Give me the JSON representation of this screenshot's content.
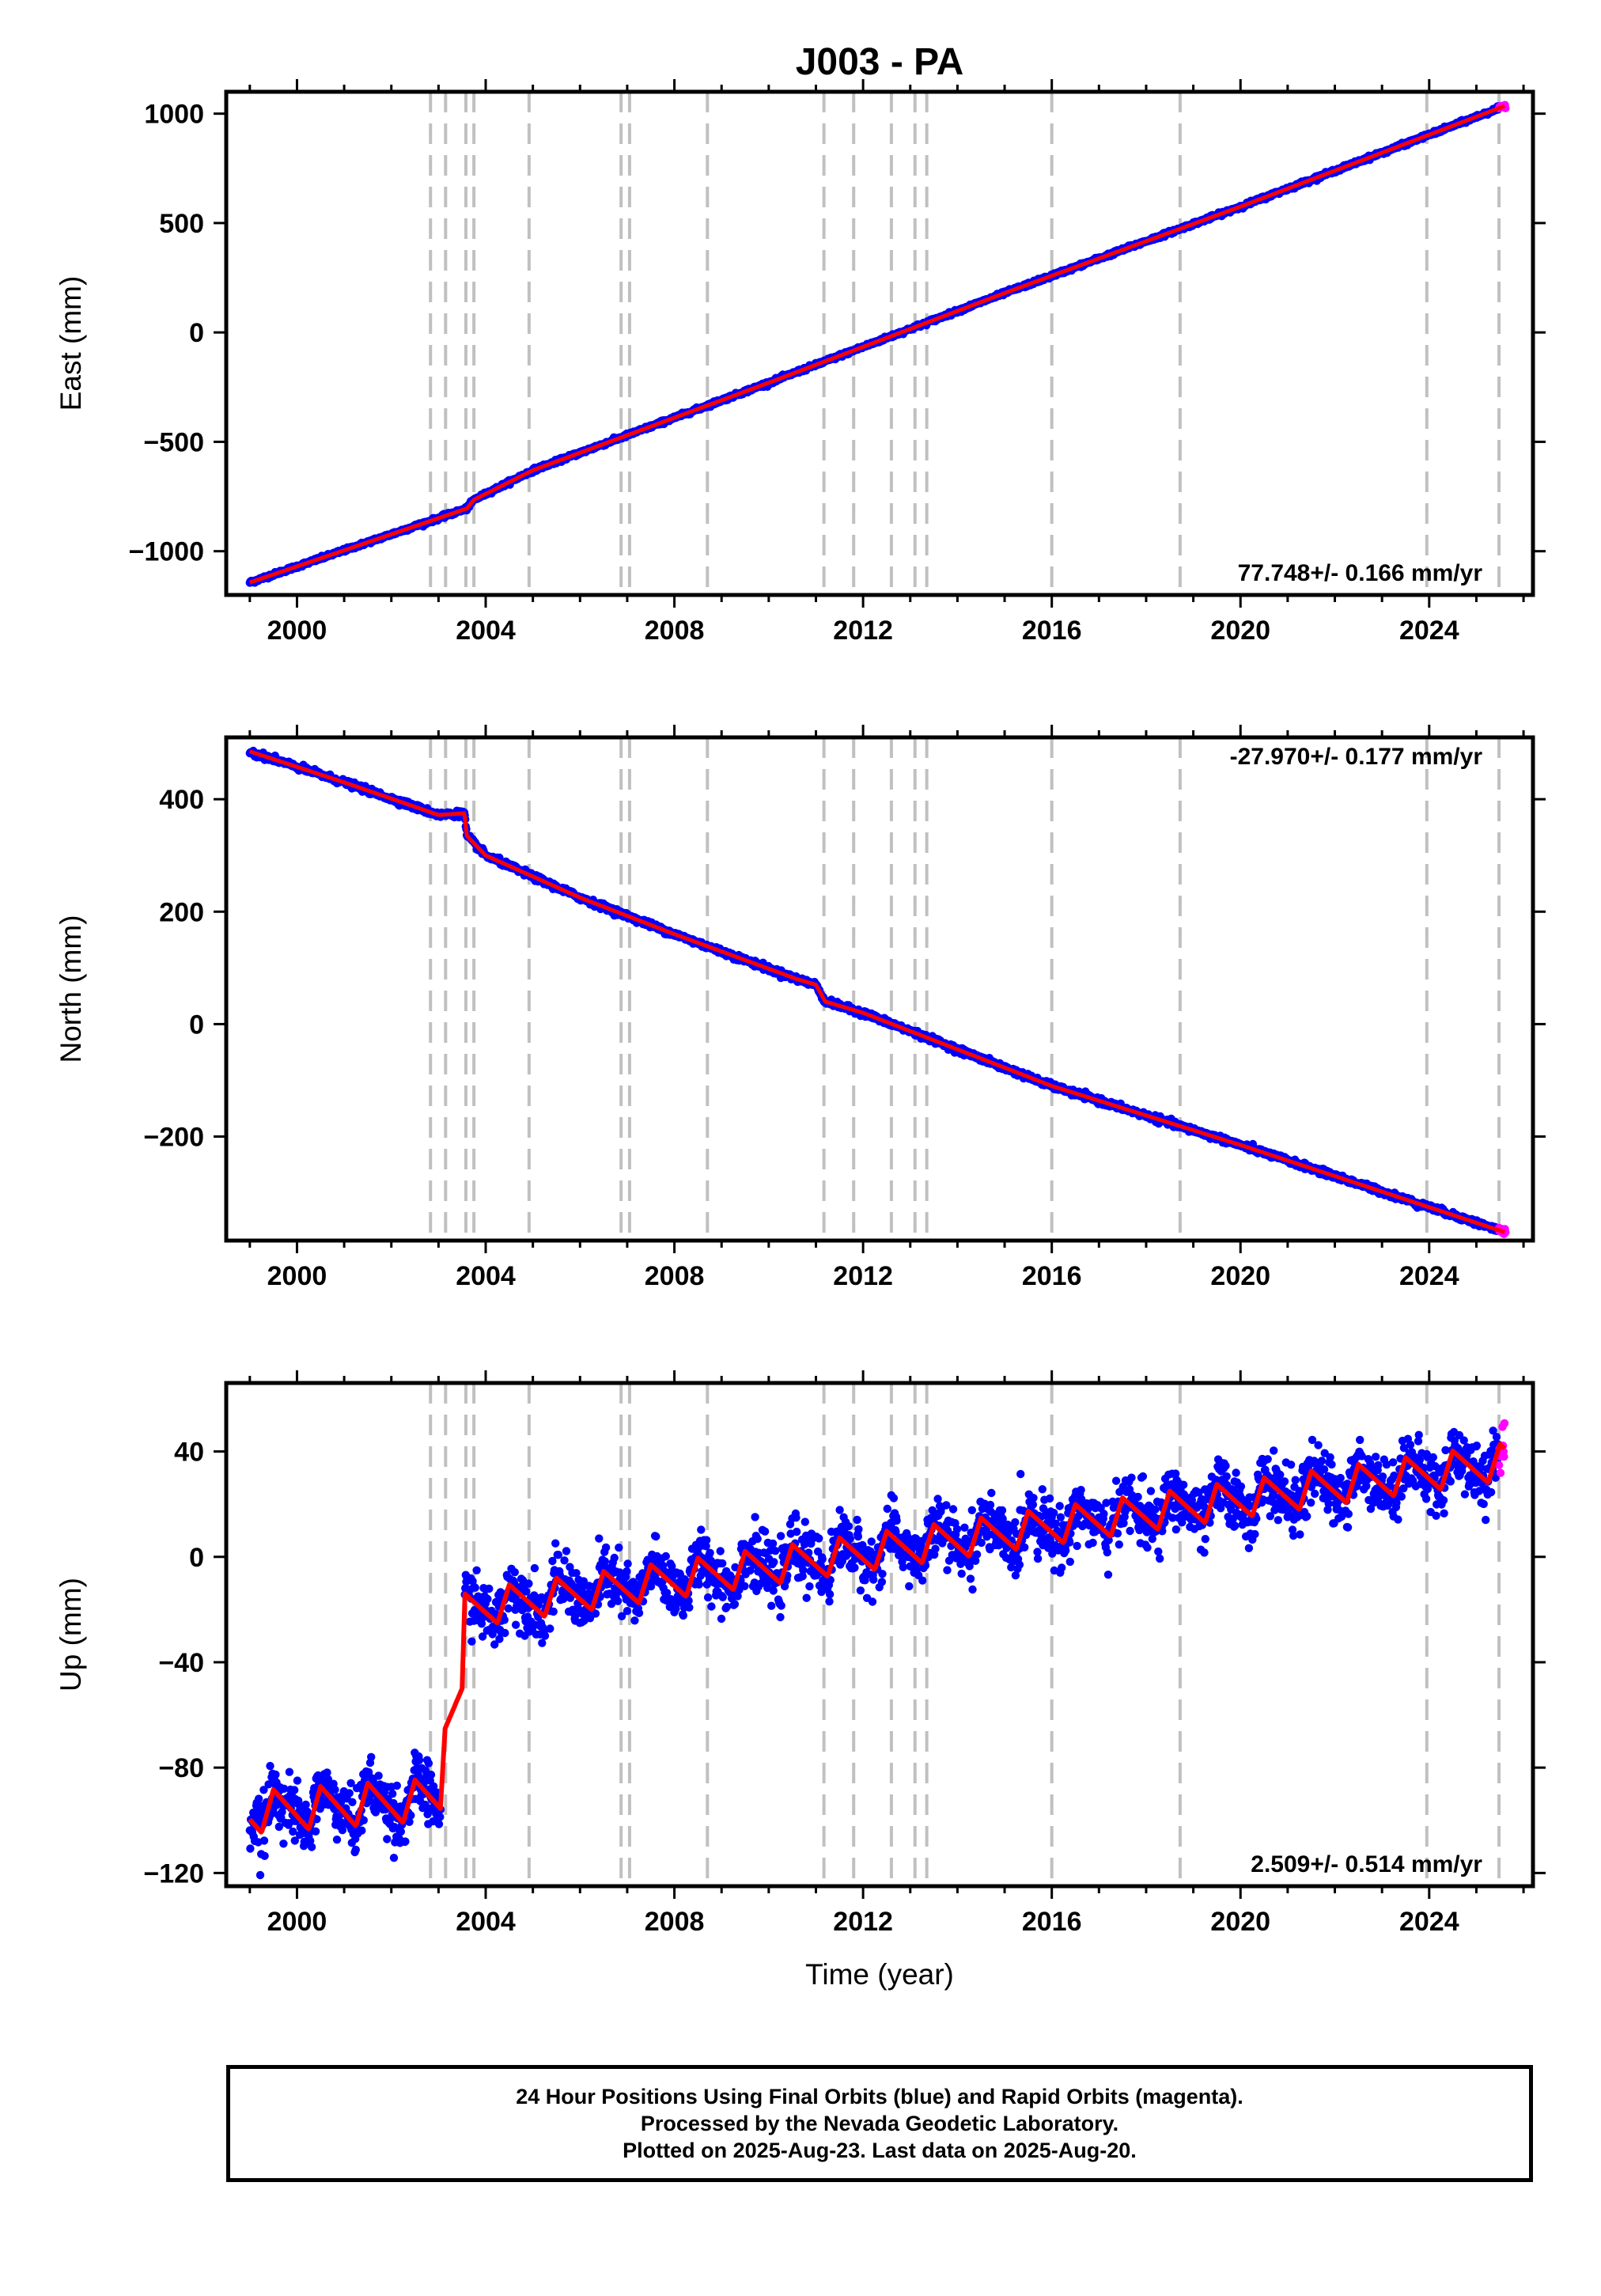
{
  "title": "J003 - PA",
  "chart_data": [
    {
      "type": "scatter",
      "panel": "east",
      "ylabel": "East (mm)",
      "xlabel": "",
      "xlim": [
        1998.5,
        2026.2
      ],
      "ylim": [
        -1200,
        1100
      ],
      "xticks": [
        2000,
        2004,
        2008,
        2012,
        2016,
        2020,
        2024
      ],
      "yticks": [
        -1000,
        -500,
        0,
        500,
        1000
      ],
      "yticklabels": [
        "−1000",
        "−500",
        "0",
        "500",
        "1000"
      ],
      "rate_label": "77.748+/- 0.166 mm/yr",
      "rate_position": "bottom-right",
      "trend_points": [
        [
          1999.0,
          -1143
        ],
        [
          2003.6,
          -805
        ],
        [
          2003.75,
          -765
        ],
        [
          2005,
          -630
        ],
        [
          2010,
          -230
        ],
        [
          2015,
          180
        ],
        [
          2020,
          575
        ],
        [
          2025.6,
          1035
        ]
      ]
    },
    {
      "type": "scatter",
      "panel": "north",
      "ylabel": "North (mm)",
      "xlabel": "",
      "xlim": [
        1998.5,
        2026.2
      ],
      "ylim": [
        -385,
        510
      ],
      "xticks": [
        2000,
        2004,
        2008,
        2012,
        2016,
        2020,
        2024
      ],
      "yticks": [
        -200,
        0,
        200,
        400
      ],
      "yticklabels": [
        "−200",
        "0",
        "200",
        "400"
      ],
      "rate_label": "-27.970+/- 0.177 mm/yr",
      "rate_position": "top-right",
      "trend_points": [
        [
          1999.0,
          485
        ],
        [
          2001,
          430
        ],
        [
          2003.0,
          372
        ],
        [
          2003.55,
          375
        ],
        [
          2003.6,
          335
        ],
        [
          2004.0,
          300
        ],
        [
          2006,
          225
        ],
        [
          2008,
          160
        ],
        [
          2010.6,
          80
        ],
        [
          2011.0,
          70
        ],
        [
          2011.2,
          40
        ],
        [
          2012,
          20
        ],
        [
          2016,
          -110
        ],
        [
          2020,
          -215
        ],
        [
          2025.6,
          -370
        ]
      ]
    },
    {
      "type": "scatter",
      "panel": "up",
      "ylabel": "Up (mm)",
      "xlabel": "Time (year)",
      "xlim": [
        1998.5,
        2026.2
      ],
      "ylim": [
        -125,
        66
      ],
      "xticks": [
        2000,
        2004,
        2008,
        2012,
        2016,
        2020,
        2024
      ],
      "yticks": [
        -120,
        -80,
        -40,
        0,
        40
      ],
      "yticklabels": [
        "−120",
        "−80",
        "−40",
        "0",
        "40"
      ],
      "rate_label": "2.509+/- 0.514 mm/yr",
      "rate_position": "bottom-right",
      "segments": [
        {
          "start": 1999.0,
          "end": 2003.05,
          "base_start": -97,
          "base_end": -92,
          "amp": 8
        },
        {
          "start": 2003.12,
          "end": 2003.5,
          "base_start": -66,
          "base_end": -50,
          "amp": 0
        },
        {
          "start": 2003.55,
          "end": 2025.6,
          "base_start": -20,
          "base_end": 36,
          "amp": 7
        }
      ]
    }
  ],
  "event_lines": [
    2002.83,
    2003.15,
    2003.58,
    2003.75,
    2004.92,
    2006.87,
    2007.05,
    2008.7,
    2011.17,
    2011.8,
    2012.6,
    2013.1,
    2013.35,
    2016.0,
    2018.72,
    2023.95,
    2025.48
  ],
  "colors": {
    "final_orbits": "#0000ff",
    "rapid_orbits": "#ff00ff",
    "model": "#ff0000",
    "event_line": "#c0c0c0"
  },
  "footer": {
    "line1": "24 Hour Positions Using Final Orbits (blue) and Rapid Orbits (magenta).",
    "line2": "Processed by the Nevada Geodetic Laboratory.",
    "line3": "Plotted on 2025-Aug-23. Last data on 2025-Aug-20."
  }
}
